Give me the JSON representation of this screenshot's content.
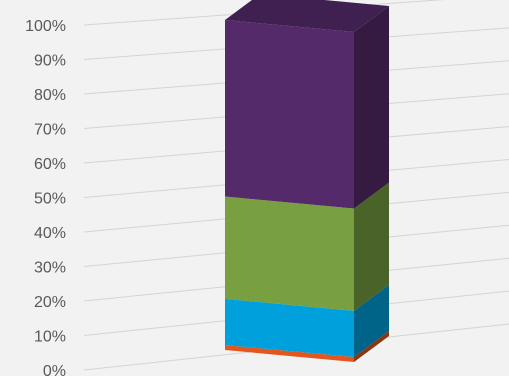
{
  "chart_data": {
    "type": "bar",
    "stacked": true,
    "three_d": true,
    "title": "",
    "xlabel": "",
    "ylabel": "",
    "ylim": [
      0,
      100
    ],
    "y_ticks": [
      "0%",
      "10%",
      "20%",
      "30%",
      "40%",
      "50%",
      "60%",
      "70%",
      "80%",
      "90%",
      "100%"
    ],
    "grid": true,
    "legend": "none",
    "categories": [
      ""
    ],
    "series": [
      {
        "values": [
          1.5
        ],
        "color": "#e2561f"
      },
      {
        "values": [
          14
        ],
        "color": "#00a0dc"
      },
      {
        "values": [
          31
        ],
        "color": "#78a040"
      },
      {
        "values": [
          53.5
        ],
        "color": "#552a6b"
      }
    ]
  }
}
